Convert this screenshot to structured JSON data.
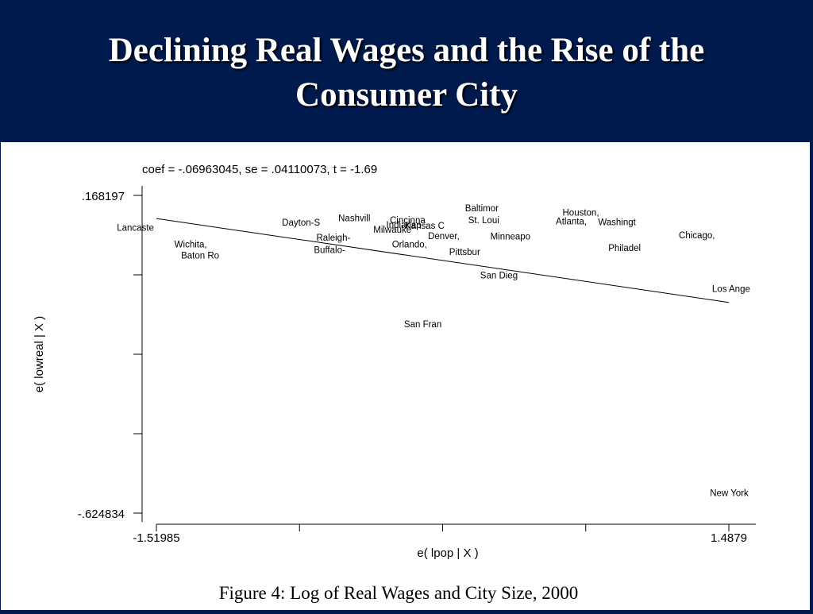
{
  "slide": {
    "title_line1": "Declining Real Wages and the Rise of the",
    "title_line2": "Consumer City",
    "background": "#001a4d"
  },
  "figure": {
    "caption": "Figure 4: Log of Real Wages and City Size, 2000"
  },
  "chart_data": {
    "type": "scatter",
    "annotation": "coef = -.06963045, se = .04110073, t = -1.69",
    "xlabel": "e( lpop | X )",
    "ylabel": "e( lowreal | X )",
    "xlim": [
      -1.51985,
      1.4879
    ],
    "ylim": [
      -0.624834,
      0.168197
    ],
    "x_tick_labels": [
      "-1.51985",
      "1.4879"
    ],
    "y_tick_labels": [
      ".168197",
      "-.624834"
    ],
    "fit_line": {
      "slope": -0.06963045,
      "x": [
        -1.51985,
        1.4879
      ],
      "y": [
        0.1105,
        -0.0989
      ]
    },
    "points": [
      {
        "label": "Lancaste",
        "x": -1.63,
        "y": 0.088
      },
      {
        "label": "Wichita,",
        "x": -1.34,
        "y": 0.046
      },
      {
        "label": "Baton Ro",
        "x": -1.29,
        "y": 0.019
      },
      {
        "label": "Dayton-S",
        "x": -0.76,
        "y": 0.101
      },
      {
        "label": "Nashvill",
        "x": -0.48,
        "y": 0.112
      },
      {
        "label": "Raleigh-",
        "x": -0.59,
        "y": 0.063
      },
      {
        "label": "Buffalo-",
        "x": -0.61,
        "y": 0.032
      },
      {
        "label": "Cincinna",
        "x": -0.2,
        "y": 0.107
      },
      {
        "label": "Indianap",
        "x": -0.22,
        "y": 0.095
      },
      {
        "label": "Kansas C",
        "x": -0.11,
        "y": 0.093
      },
      {
        "label": "Milwauke",
        "x": -0.28,
        "y": 0.083
      },
      {
        "label": "Orlando,",
        "x": -0.19,
        "y": 0.046
      },
      {
        "label": "Denver,",
        "x": -0.01,
        "y": 0.067
      },
      {
        "label": "Pittsbur",
        "x": 0.1,
        "y": 0.027
      },
      {
        "label": "Baltimor",
        "x": 0.19,
        "y": 0.136
      },
      {
        "label": "St. Loui",
        "x": 0.2,
        "y": 0.107
      },
      {
        "label": "Minneapo",
        "x": 0.34,
        "y": 0.066
      },
      {
        "label": "San Dieg",
        "x": 0.28,
        "y": -0.031
      },
      {
        "label": "San Fran",
        "x": -0.12,
        "y": -0.153
      },
      {
        "label": "Houston,",
        "x": 0.71,
        "y": 0.126
      },
      {
        "label": "Atlanta,",
        "x": 0.66,
        "y": 0.104
      },
      {
        "label": "Washingt",
        "x": 0.9,
        "y": 0.102
      },
      {
        "label": "Philadel",
        "x": 0.94,
        "y": 0.037
      },
      {
        "label": "Chicago,",
        "x": 1.32,
        "y": 0.069
      },
      {
        "label": "Los Ange",
        "x": 1.5,
        "y": -0.065
      },
      {
        "label": "New York",
        "x": 1.49,
        "y": -0.574
      }
    ],
    "grid": false
  }
}
